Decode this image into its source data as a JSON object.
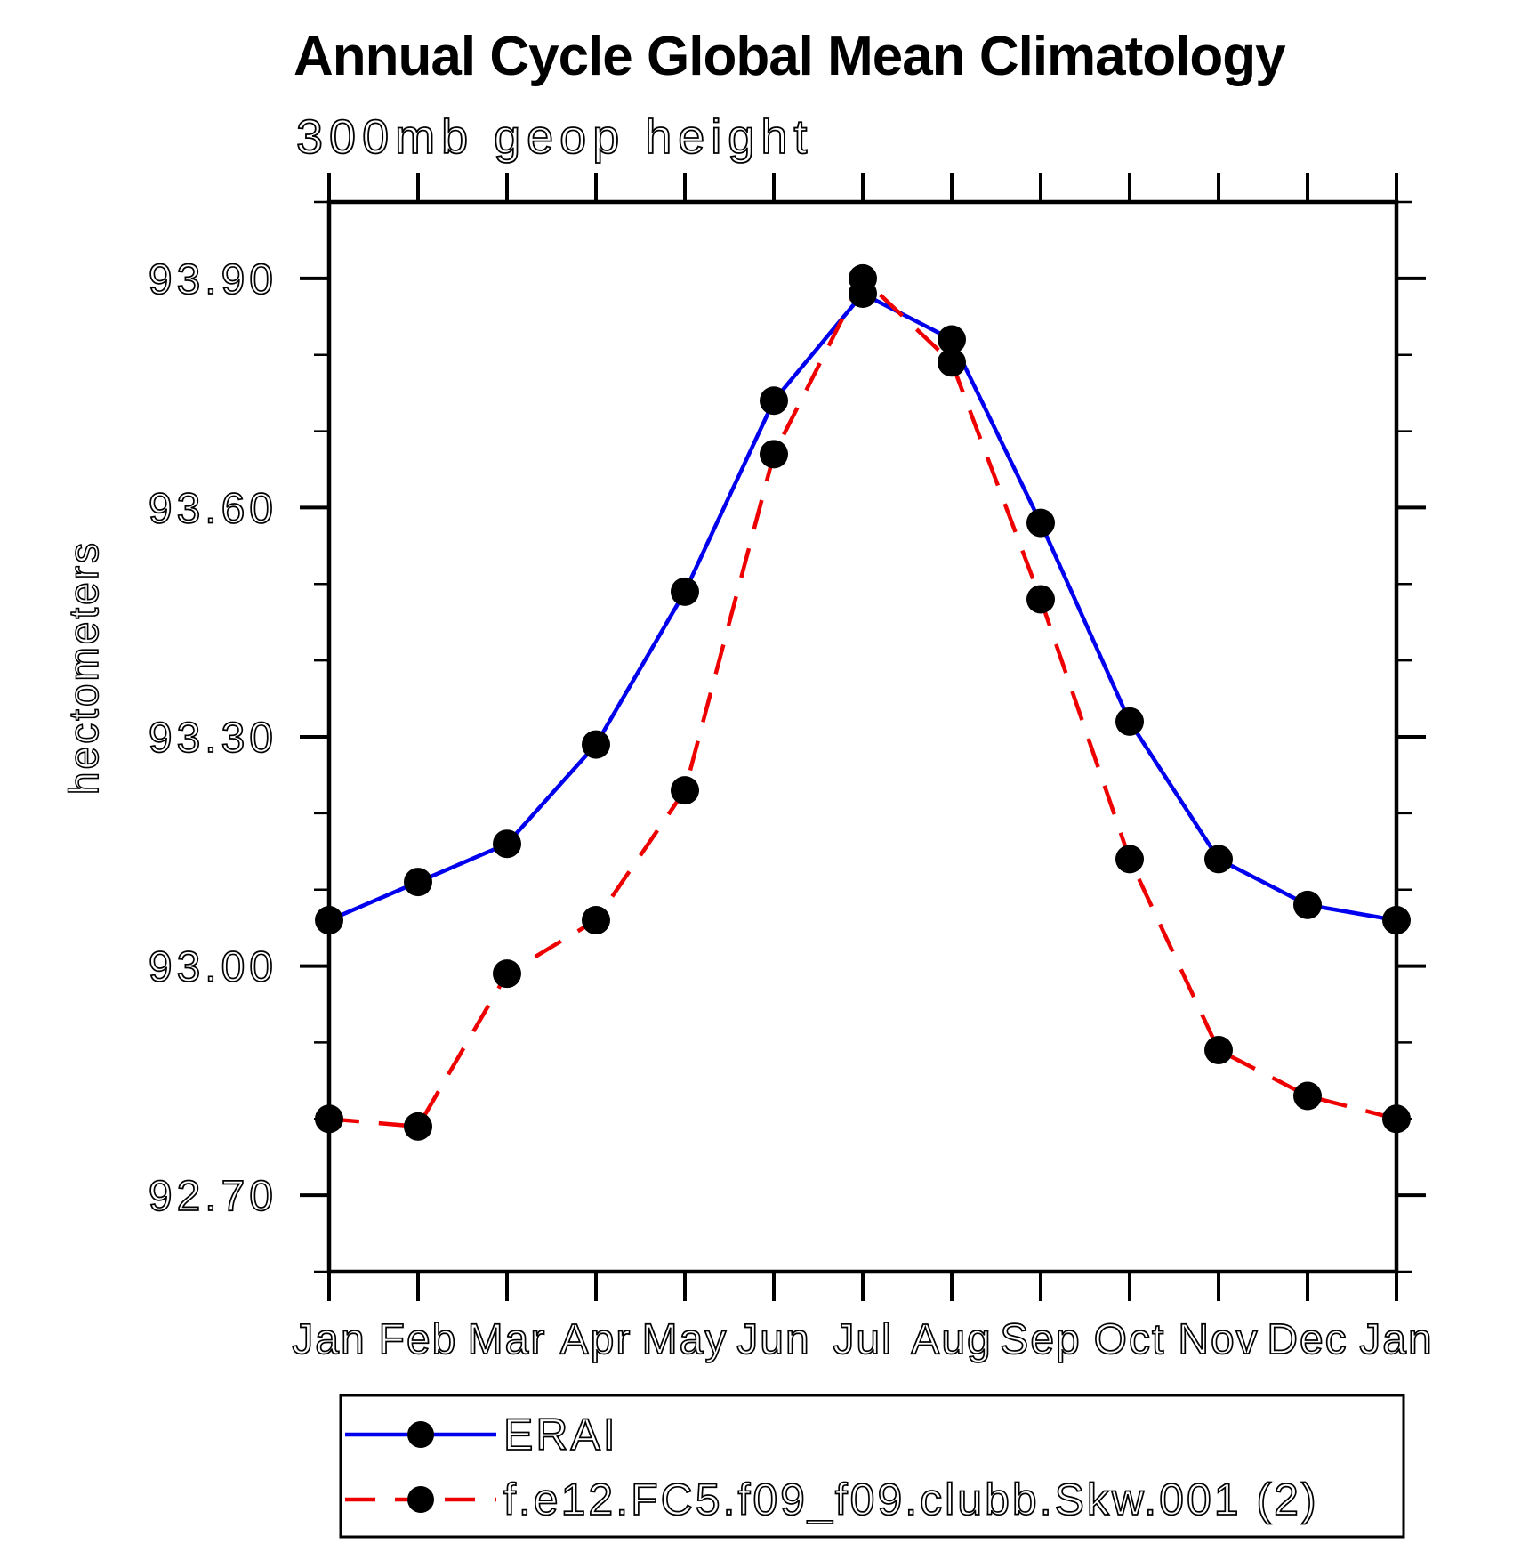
{
  "chart_data": {
    "type": "line",
    "title": "Annual Cycle Global Mean Climatology",
    "subtitle": "300mb geop height",
    "ylabel": "hectometers",
    "xlabel": "",
    "categories": [
      "Jan",
      "Feb",
      "Mar",
      "Apr",
      "May",
      "Jun",
      "Jul",
      "Aug",
      "Sep",
      "Oct",
      "Nov",
      "Dec",
      "Jan"
    ],
    "series": [
      {
        "name": "ERAI",
        "color": "#0000ee",
        "style": "solid",
        "marker": "circle",
        "marker_color": "#000000",
        "values": [
          93.06,
          93.11,
          93.16,
          93.29,
          93.49,
          93.74,
          93.88,
          93.82,
          93.58,
          93.32,
          93.14,
          93.08,
          93.06
        ]
      },
      {
        "name": "f.e12.FC5.f09_f09.clubb.Skw.001 (2)",
        "color": "#ee0000",
        "style": "dashed",
        "marker": "circle",
        "marker_color": "#000000",
        "values": [
          92.8,
          92.79,
          92.99,
          93.06,
          93.23,
          93.67,
          93.9,
          93.79,
          93.48,
          93.14,
          92.89,
          92.83,
          92.8
        ]
      }
    ],
    "ylim": [
      92.6,
      94.0
    ],
    "ytick_values": [
      92.7,
      93.0,
      93.3,
      93.6,
      93.9
    ],
    "ytick_labels": [
      "92.70",
      "93.00",
      "93.30",
      "93.60",
      "93.90"
    ],
    "y_minor_tick_interval": 0.1,
    "grid": false,
    "legend_position": "bottom",
    "axis_color": "#000000",
    "text_color": "#000000"
  }
}
